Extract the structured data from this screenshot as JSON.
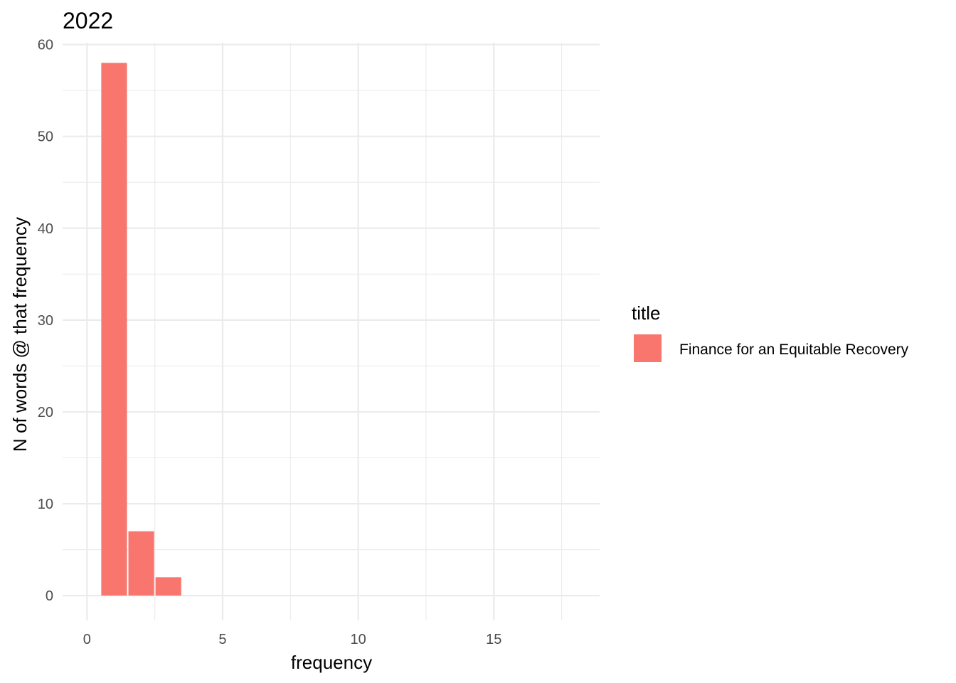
{
  "chart_data": {
    "type": "bar",
    "title": "2022",
    "xlabel": "frequency",
    "ylabel": "N of words @ that frequency",
    "xlim": [
      -0.9,
      18.9
    ],
    "ylim": [
      -2.7,
      60.2
    ],
    "x_ticks": [
      0,
      5,
      10,
      15
    ],
    "x_tick_labels": [
      "0",
      "5",
      "10",
      "15"
    ],
    "y_ticks": [
      0,
      10,
      20,
      30,
      40,
      50,
      60
    ],
    "y_tick_labels": [
      "0",
      "10",
      "20",
      "30",
      "40",
      "50",
      "60"
    ],
    "grid": true,
    "bin_width": 1,
    "legend": {
      "title": "title",
      "position": "right",
      "entries": [
        {
          "label": "Finance for an Equitable Recovery",
          "color": "#f8766d"
        }
      ]
    },
    "series": [
      {
        "name": "Finance for an Equitable Recovery",
        "color": "#f8766d",
        "x": [
          1,
          2,
          3
        ],
        "values": [
          58,
          7,
          2
        ]
      }
    ]
  }
}
